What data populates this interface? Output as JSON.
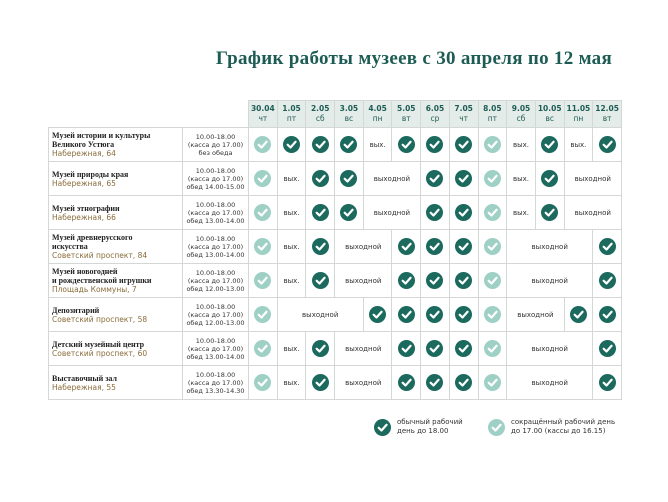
{
  "title": "График работы музеев с 30 апреля по 12 мая",
  "columns": [
    {
      "date": "30.04",
      "day": "чт"
    },
    {
      "date": "1.05",
      "day": "пт"
    },
    {
      "date": "2.05",
      "day": "сб"
    },
    {
      "date": "3.05",
      "day": "вс"
    },
    {
      "date": "4.05",
      "day": "пн"
    },
    {
      "date": "5.05",
      "day": "вт"
    },
    {
      "date": "6.05",
      "day": "ср"
    },
    {
      "date": "7.05",
      "day": "чт"
    },
    {
      "date": "8.05",
      "day": "пт"
    },
    {
      "date": "9.05",
      "day": "сб"
    },
    {
      "date": "10.05",
      "day": "вс"
    },
    {
      "date": "11.05",
      "day": "пн"
    },
    {
      "date": "12.05",
      "day": "вт"
    }
  ],
  "rows": [
    {
      "name": [
        "Музей истории и культуры",
        "Великого Устюга"
      ],
      "address": "Набережная, 64",
      "hours": [
        "10.00-18.00",
        "(касса до 17.00)",
        "без обеда"
      ],
      "cells": [
        {
          "check": "short"
        },
        {
          "check": "full"
        },
        {
          "check": "full"
        },
        {
          "check": "full"
        },
        {
          "text": "вых.",
          "span": 1
        },
        {
          "check": "full"
        },
        {
          "check": "full"
        },
        {
          "check": "full"
        },
        {
          "check": "short"
        },
        {
          "text": "вых.",
          "span": 1
        },
        {
          "check": "full"
        },
        {
          "text": "вых.",
          "span": 1
        },
        {
          "check": "full"
        }
      ]
    },
    {
      "name": [
        "Музей природы края"
      ],
      "address": "Набережная, 65",
      "hours": [
        "10.00-18.00",
        "(касса до 17.00)",
        "обед 14.00-15.00"
      ],
      "cells": [
        {
          "check": "short"
        },
        {
          "text": "вых.",
          "span": 1
        },
        {
          "check": "full"
        },
        {
          "check": "full"
        },
        {
          "text": "выходной",
          "span": 2
        },
        {
          "check": "full"
        },
        {
          "check": "full"
        },
        {
          "check": "short"
        },
        {
          "text": "вых.",
          "span": 1
        },
        {
          "check": "full"
        },
        {
          "text": "выходной",
          "span": 2
        }
      ]
    },
    {
      "name": [
        "Музей этнографии"
      ],
      "address": "Набережная, 66",
      "hours": [
        "10.00-18.00",
        "(касса до 17.00)",
        "обед 13.00-14.00"
      ],
      "cells": [
        {
          "check": "short"
        },
        {
          "text": "вых.",
          "span": 1
        },
        {
          "check": "full"
        },
        {
          "check": "full"
        },
        {
          "text": "выходной",
          "span": 2
        },
        {
          "check": "full"
        },
        {
          "check": "full"
        },
        {
          "check": "short"
        },
        {
          "text": "вых.",
          "span": 1
        },
        {
          "check": "full"
        },
        {
          "text": "выходной",
          "span": 2
        }
      ]
    },
    {
      "name": [
        "Музей древнерусского",
        "искусства"
      ],
      "address": "Советский проспект, 84",
      "hours": [
        "10.00-18.00",
        "(касса до 17.00)",
        "обед 13.00-14.00"
      ],
      "cells": [
        {
          "check": "short"
        },
        {
          "text": "вых.",
          "span": 1
        },
        {
          "check": "full"
        },
        {
          "text": "выходной",
          "span": 2
        },
        {
          "check": "full"
        },
        {
          "check": "full"
        },
        {
          "check": "full"
        },
        {
          "check": "short"
        },
        {
          "text": "выходной",
          "span": 3
        },
        {
          "check": "full"
        }
      ]
    },
    {
      "name": [
        "Музей новогодней",
        "и рождественской игрушки"
      ],
      "address": "Площадь Коммуны, 7",
      "hours": [
        "10.00-18.00",
        "(касса до 17.00)",
        "обед 12.00-13.00"
      ],
      "cells": [
        {
          "check": "short"
        },
        {
          "text": "вых.",
          "span": 1
        },
        {
          "check": "full"
        },
        {
          "text": "выходной",
          "span": 2
        },
        {
          "check": "full"
        },
        {
          "check": "full"
        },
        {
          "check": "full"
        },
        {
          "check": "short"
        },
        {
          "text": "выходной",
          "span": 3
        },
        {
          "check": "full"
        }
      ]
    },
    {
      "name": [
        "Депозитарий"
      ],
      "address": "Советский проспект, 58",
      "hours": [
        "10.00-18.00",
        "(касса до 17.00)",
        "обед 12.00-13.00"
      ],
      "cells": [
        {
          "check": "short"
        },
        {
          "text": "выходной",
          "span": 3
        },
        {
          "check": "full"
        },
        {
          "check": "full"
        },
        {
          "check": "full"
        },
        {
          "check": "full"
        },
        {
          "check": "short"
        },
        {
          "text": "выходной",
          "span": 2
        },
        {
          "check": "full"
        },
        {
          "check": "full"
        }
      ]
    },
    {
      "name": [
        "Детский музейный центр"
      ],
      "address": "Советский проспект, 60",
      "hours": [
        "10.00-18.00",
        "(касса до 17.00)",
        "обед 13.00-14.00"
      ],
      "cells": [
        {
          "check": "short"
        },
        {
          "text": "вых.",
          "span": 1
        },
        {
          "check": "full"
        },
        {
          "text": "выходной",
          "span": 2
        },
        {
          "check": "full"
        },
        {
          "check": "full"
        },
        {
          "check": "full"
        },
        {
          "check": "short"
        },
        {
          "text": "выходной",
          "span": 3
        },
        {
          "check": "full"
        }
      ]
    },
    {
      "name": [
        "Выставочный зал"
      ],
      "address": "Набережная, 55",
      "hours": [
        "10.00-18.00",
        "(касса до 17.00)",
        "обед 13.30-14.30"
      ],
      "cells": [
        {
          "check": "short"
        },
        {
          "text": "вых.",
          "span": 1
        },
        {
          "check": "full"
        },
        {
          "text": "выходной",
          "span": 2
        },
        {
          "check": "full"
        },
        {
          "check": "full"
        },
        {
          "check": "full"
        },
        {
          "check": "short"
        },
        {
          "text": "выходной",
          "span": 3
        },
        {
          "check": "full"
        }
      ]
    }
  ],
  "legend": [
    {
      "check": "full",
      "label": [
        "обычный рабочий",
        "день до 18.00"
      ]
    },
    {
      "check": "short",
      "label": [
        "сокращённый рабочий день",
        "до 17.00 (кассы до 16.15)"
      ]
    }
  ],
  "colors": {
    "full": "#1b6a5d",
    "short": "#9fd0c6"
  }
}
